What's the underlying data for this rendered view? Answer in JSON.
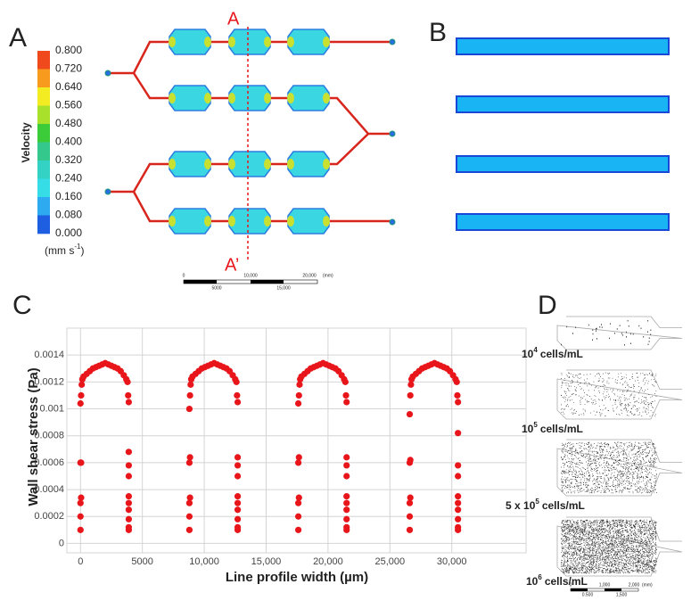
{
  "panel_labels": [
    "A",
    "B",
    "C",
    "D"
  ],
  "panel_a": {
    "colorbar": {
      "title": "Velocity",
      "unit": [
        "(mm s",
        "-1",
        ")"
      ],
      "labels": [
        "0.800",
        "0.720",
        "0.640",
        "0.560",
        "0.480",
        "0.400",
        "0.320",
        "0.240",
        "0.160",
        "0.080",
        "0.000"
      ],
      "colors": [
        "#f04a1c",
        "#f89a1e",
        "#f4ec22",
        "#a8e02c",
        "#3ccc3a",
        "#34c88c",
        "#34d2c4",
        "#36dce6",
        "#2eaaf0",
        "#1e5ee0"
      ]
    },
    "section_labels": [
      "A",
      "A’"
    ],
    "scale_bar": {
      "top": [
        "0",
        "10,000",
        "20,000",
        "(mm)"
      ],
      "bottom": [
        "5000",
        "15,000"
      ]
    }
  },
  "panel_d": {
    "labels": [
      [
        "10",
        "4",
        "cells/mL"
      ],
      [
        "10",
        "5",
        "cells/mL"
      ],
      [
        "5 x 10",
        "5",
        "cells/mL"
      ],
      [
        "10",
        "6",
        "cells/mL"
      ]
    ],
    "scale_bar": {
      "top": [
        "0",
        "1,000",
        "2,000",
        "(mm)"
      ],
      "bottom": [
        "0.500",
        "1,500"
      ]
    }
  },
  "chart_data": {
    "type": "scatter",
    "color": "#e8161b",
    "x_label": "Line profile width (µm)",
    "y_label": "Wall shear stress (Pa)",
    "xlim": [
      -1100,
      36000
    ],
    "ylim": [
      -7e-05,
      0.0016
    ],
    "grid": true,
    "xticks": [
      0,
      5000,
      {
        "value": 10000,
        "label": "10,000"
      },
      {
        "value": 15000,
        "label": "15,000"
      },
      {
        "value": 20000,
        "label": "20,000"
      },
      {
        "value": 25000,
        "label": "25,000"
      },
      {
        "value": 30000,
        "label": "30,000"
      }
    ],
    "yticks": [
      0,
      0.0002,
      0.0004,
      0.0006,
      0.0008,
      0.001,
      0.0012,
      0.0014
    ],
    "x": [
      0,
      0,
      0,
      50,
      0,
      50,
      0,
      50,
      100,
      150,
      250,
      500,
      750,
      1000,
      1250,
      1500,
      1750,
      2000,
      2250,
      2500,
      2750,
      3000,
      3250,
      3500,
      3700,
      3800,
      3850,
      3900,
      3900,
      3900,
      3900,
      3900,
      3900,
      3900,
      3900,
      3900,
      3900,
      8800,
      8800,
      8800,
      8850,
      8800,
      8850,
      8800,
      8850,
      8900,
      8950,
      9050,
      9300,
      9550,
      9800,
      10050,
      10300,
      10550,
      10800,
      11050,
      11300,
      11550,
      11800,
      12050,
      12300,
      12500,
      12600,
      12650,
      12700,
      12700,
      12700,
      12700,
      12700,
      12700,
      12700,
      12700,
      12700,
      12700,
      17600,
      17600,
      17600,
      17650,
      17600,
      17650,
      17600,
      17650,
      17700,
      17750,
      17850,
      18100,
      18350,
      18600,
      18850,
      19100,
      19350,
      19600,
      19850,
      20100,
      20350,
      20600,
      20850,
      21100,
      21300,
      21400,
      21450,
      21500,
      21500,
      21500,
      21500,
      21500,
      21500,
      21500,
      21500,
      21500,
      21500,
      26600,
      26600,
      26600,
      26650,
      26600,
      26650,
      26600,
      26650,
      26700,
      26750,
      26850,
      27100,
      27350,
      27600,
      27850,
      28100,
      28350,
      28600,
      28850,
      29100,
      29350,
      29600,
      29850,
      30100,
      30300,
      30400,
      30450,
      30500,
      30500,
      30500,
      30500,
      30500,
      30500,
      30500,
      30500,
      30500,
      30500
    ],
    "values": [
      0.0001,
      0.0002,
      0.0003,
      0.00034,
      0.0006,
      0.0006,
      0.00104,
      0.0011,
      0.00118,
      0.00122,
      0.00124,
      0.00126,
      0.00128,
      0.0013,
      0.00131,
      0.00132,
      0.00133,
      0.00134,
      0.00133,
      0.00132,
      0.00131,
      0.0013,
      0.00128,
      0.00125,
      0.00122,
      0.0012,
      0.0011,
      0.00105,
      0.00068,
      0.00058,
      0.0005,
      0.00035,
      0.0003,
      0.00025,
      0.00018,
      0.00012,
      0.0001,
      0.0001,
      0.0002,
      0.0003,
      0.00034,
      0.0006,
      0.00064,
      0.001,
      0.0011,
      0.00118,
      0.00122,
      0.00124,
      0.00126,
      0.00128,
      0.0013,
      0.00131,
      0.00132,
      0.00133,
      0.00134,
      0.00133,
      0.00132,
      0.00131,
      0.0013,
      0.00128,
      0.00125,
      0.00122,
      0.0012,
      0.0011,
      0.00105,
      0.00064,
      0.00058,
      0.0005,
      0.00035,
      0.0003,
      0.00025,
      0.00018,
      0.00012,
      0.0001,
      0.0001,
      0.0002,
      0.0003,
      0.00034,
      0.0006,
      0.00064,
      0.00104,
      0.0011,
      0.00118,
      0.00122,
      0.00124,
      0.00126,
      0.00128,
      0.0013,
      0.00131,
      0.00132,
      0.00133,
      0.00134,
      0.00133,
      0.00132,
      0.00131,
      0.0013,
      0.00128,
      0.00125,
      0.00122,
      0.0012,
      0.0011,
      0.00105,
      0.00064,
      0.00058,
      0.0005,
      0.00035,
      0.0003,
      0.00025,
      0.00018,
      0.00012,
      0.0001,
      0.0001,
      0.0002,
      0.0003,
      0.00034,
      0.0006,
      0.00062,
      0.00096,
      0.0011,
      0.00118,
      0.00122,
      0.00124,
      0.00126,
      0.00128,
      0.0013,
      0.00131,
      0.00132,
      0.00133,
      0.00134,
      0.00133,
      0.00132,
      0.00131,
      0.0013,
      0.00128,
      0.00125,
      0.00122,
      0.0012,
      0.0011,
      0.00105,
      0.00082,
      0.00058,
      0.0005,
      0.00035,
      0.0003,
      0.00025,
      0.00018,
      0.00012,
      0.0001
    ]
  }
}
